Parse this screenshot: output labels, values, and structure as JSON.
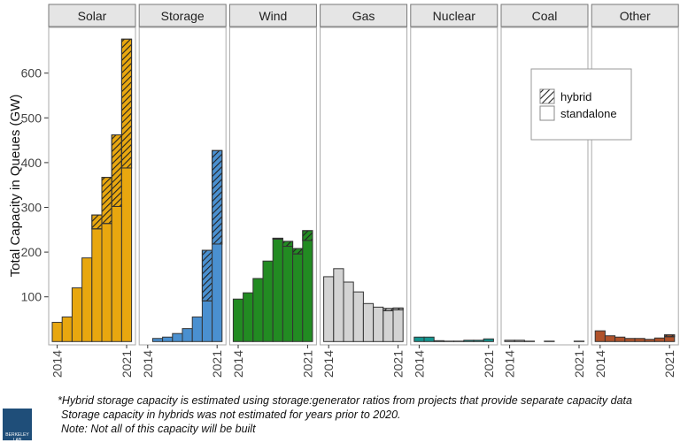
{
  "chart_data": {
    "type": "bar",
    "stacked": true,
    "ylabel": "Total Capacity in Queues (GW)",
    "ylim": [
      0,
      700
    ],
    "yticks": [
      100,
      200,
      300,
      400,
      500,
      600
    ],
    "xtick_labels": [
      "2014",
      "2021"
    ],
    "years": [
      2014,
      2015,
      2016,
      2017,
      2018,
      2019,
      2020,
      2021
    ],
    "grid": false,
    "legend": {
      "position": "top-right",
      "entries": [
        "hybrid",
        "standalone"
      ]
    },
    "panels": [
      {
        "name": "Solar",
        "color": "#E8A70F",
        "standalone": [
          43,
          55,
          120,
          187,
          252,
          264,
          302,
          388
        ],
        "hybrid": [
          0,
          0,
          0,
          0,
          31,
          103,
          160,
          288
        ]
      },
      {
        "name": "Storage",
        "color": "#4A90D0",
        "standalone": [
          0,
          7,
          10,
          18,
          29,
          55,
          91,
          218
        ],
        "hybrid": [
          0,
          0,
          0,
          0,
          0,
          0,
          113,
          209
        ]
      },
      {
        "name": "Wind",
        "color": "#228B22",
        "standalone": [
          95,
          109,
          141,
          180,
          229,
          213,
          196,
          226
        ],
        "hybrid": [
          0,
          0,
          0,
          0,
          2,
          11,
          12,
          22
        ]
      },
      {
        "name": "Gas",
        "color": "#D3D3D3",
        "standalone": [
          145,
          163,
          133,
          111,
          85,
          77,
          69,
          71
        ],
        "hybrid": [
          0,
          0,
          0,
          0,
          0,
          0,
          5,
          4
        ]
      },
      {
        "name": "Nuclear",
        "color": "#13958F",
        "standalone": [
          10,
          10,
          2,
          1,
          1,
          3,
          3,
          6
        ],
        "hybrid": [
          0,
          0,
          0,
          0,
          0,
          0,
          0,
          0
        ]
      },
      {
        "name": "Coal",
        "color": "#A9A9A9",
        "standalone": [
          3,
          3,
          1,
          0,
          1,
          0,
          0,
          1
        ],
        "hybrid": [
          0,
          0,
          0,
          0,
          0,
          0,
          0,
          0
        ]
      },
      {
        "name": "Other",
        "color": "#B0522A",
        "standalone": [
          24,
          13,
          10,
          7,
          7,
          5,
          8,
          11
        ],
        "hybrid": [
          0,
          0,
          0,
          0,
          0,
          0,
          0,
          4
        ]
      }
    ]
  },
  "notes": [
    "*Hybrid storage capacity is estimated using storage:generator ratios from projects that provide separate capacity data",
    "Storage capacity in hybrids was not estimated for years prior to 2020.",
    "Note: Not all of this capacity will be built"
  ],
  "logo_text": "BERKELEY LAB"
}
